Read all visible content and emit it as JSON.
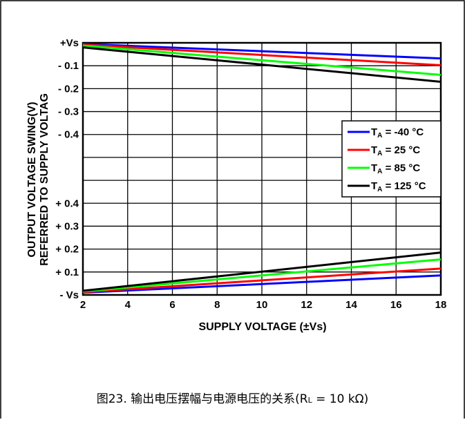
{
  "chart_data": {
    "type": "line",
    "title": "",
    "xlabel": "SUPPLY VOLTAGE (±Vs)",
    "ylabel_line1": "OUTPUT VOLTAGE SWING(V)",
    "ylabel_line2": "REFERRED TO SUPPLY VOLTAG",
    "xlim": [
      2,
      18
    ],
    "x_ticks": [
      "2",
      "4",
      "6",
      "8",
      "10",
      "12",
      "14",
      "16",
      "18"
    ],
    "top_y_ticks": [
      "+Vs",
      "- 0.1",
      "- 0.2",
      "- 0.3",
      "- 0.4"
    ],
    "bottom_y_ticks": [
      "+ 0.4",
      "+ 0.3",
      "+ 0.2",
      "+ 0.1",
      "- Vs"
    ],
    "legend_position": "right",
    "grid": true,
    "series": [
      {
        "name": "TA = -40 °C",
        "name_main": "T",
        "name_sub": "A",
        "name_rest": " = -40 °C",
        "color": "#0000ff",
        "high": {
          "x": [
            2,
            18
          ],
          "y": [
            -0.005,
            -0.068
          ]
        },
        "low": {
          "x": [
            2,
            18
          ],
          "y": [
            0.01,
            0.085
          ]
        }
      },
      {
        "name": "TA = 25 °C",
        "name_main": "T",
        "name_sub": "A",
        "name_rest": " = 25 °C",
        "color": "#ff0000",
        "high": {
          "x": [
            2,
            18
          ],
          "y": [
            -0.008,
            -0.098
          ]
        },
        "low": {
          "x": [
            2,
            18
          ],
          "y": [
            0.012,
            0.115
          ]
        }
      },
      {
        "name": "TA = 85 °C",
        "name_main": "T",
        "name_sub": "A",
        "name_rest": " = 85 °C",
        "color": "#00ff00",
        "high": {
          "x": [
            2,
            18
          ],
          "y": [
            -0.012,
            -0.14
          ]
        },
        "low": {
          "x": [
            2,
            18
          ],
          "y": [
            0.015,
            0.155
          ]
        }
      },
      {
        "name": "TA = 125 °C",
        "name_main": "T",
        "name_sub": "A",
        "name_rest": " = 125 °C",
        "color": "#000000",
        "high": {
          "x": [
            2,
            18
          ],
          "y": [
            -0.02,
            -0.17
          ]
        },
        "low": {
          "x": [
            2,
            18
          ],
          "y": [
            0.018,
            0.185
          ]
        }
      }
    ]
  },
  "caption": {
    "prefix": "图23. 输出电压摆幅与电源电压的关系(R",
    "sub": "L",
    "suffix": " = 10 kΩ)"
  }
}
